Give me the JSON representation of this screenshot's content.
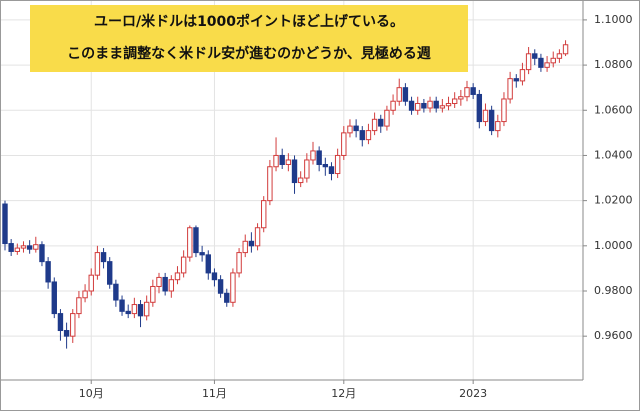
{
  "chart_data": {
    "type": "candlestick",
    "annotation": [
      "ユーロ/米ドルは1000ポイントほど上げている。",
      "このまま調整なく米ドル安が進むのかどうか、見極める週"
    ],
    "categories": [
      null,
      null,
      null,
      null,
      null,
      null,
      null,
      null,
      null,
      null,
      null,
      null,
      null,
      null,
      null,
      null,
      null,
      null,
      null,
      null,
      null,
      null,
      null,
      null,
      null,
      null,
      null,
      null,
      null,
      null,
      null,
      null,
      null,
      null,
      null,
      null,
      null,
      null,
      null,
      null,
      null,
      null,
      null,
      null,
      null,
      null,
      null,
      null,
      null,
      null,
      null,
      null,
      null,
      null,
      null,
      null,
      null,
      null,
      null,
      null,
      null,
      null,
      null,
      null,
      null,
      null,
      null,
      null,
      null,
      null,
      null,
      null,
      null,
      null,
      null,
      null,
      null,
      null,
      null,
      null,
      null,
      null,
      null,
      null,
      null,
      null,
      null,
      null,
      null,
      null,
      null,
      null
    ],
    "open": [
      1.0185,
      1.001,
      0.9975,
      0.999,
      1.0,
      0.9985,
      1.0005,
      0.993,
      0.984,
      0.97,
      0.9625,
      0.96,
      0.97,
      0.977,
      0.98,
      0.987,
      0.997,
      0.993,
      0.983,
      0.976,
      0.971,
      0.97,
      0.974,
      0.969,
      0.975,
      0.982,
      0.986,
      0.98,
      0.985,
      0.988,
      0.995,
      1.008,
      0.997,
      0.996,
      0.988,
      0.985,
      0.979,
      0.975,
      0.988,
      0.997,
      1.002,
      1.0,
      1.008,
      1.02,
      1.035,
      1.04,
      1.036,
      1.038,
      1.028,
      1.03,
      1.038,
      1.042,
      1.036,
      1.035,
      1.032,
      1.04,
      1.05,
      1.053,
      1.051,
      1.047,
      1.051,
      1.056,
      1.053,
      1.06,
      1.064,
      1.07,
      1.064,
      1.06,
      1.063,
      1.061,
      1.064,
      1.061,
      1.062,
      1.063,
      1.065,
      1.066,
      1.07,
      1.067,
      1.055,
      1.06,
      1.051,
      1.055,
      1.065,
      1.074,
      1.073,
      1.078,
      1.085,
      1.083,
      1.079,
      1.081,
      1.083,
      1.085
    ],
    "high": [
      1.02,
      1.003,
      1.001,
      1.002,
      1.0025,
      1.004,
      1.002,
      0.995,
      0.986,
      0.972,
      0.966,
      0.972,
      0.98,
      0.983,
      0.99,
      1.0,
      0.999,
      0.995,
      0.985,
      0.978,
      0.974,
      0.977,
      0.976,
      0.978,
      0.985,
      0.988,
      0.988,
      0.987,
      0.991,
      0.998,
      1.009,
      1.009,
      1.0,
      0.998,
      0.99,
      0.987,
      0.981,
      0.99,
      0.999,
      1.005,
      1.006,
      1.01,
      1.022,
      1.038,
      1.048,
      1.043,
      1.041,
      1.04,
      1.033,
      1.041,
      1.046,
      1.044,
      1.039,
      1.037,
      1.043,
      1.053,
      1.056,
      1.056,
      1.053,
      1.054,
      1.059,
      1.058,
      1.062,
      1.067,
      1.074,
      1.072,
      1.066,
      1.066,
      1.065,
      1.066,
      1.066,
      1.065,
      1.066,
      1.068,
      1.069,
      1.073,
      1.072,
      1.069,
      1.063,
      1.062,
      1.058,
      1.068,
      1.077,
      1.076,
      1.081,
      1.088,
      1.087,
      1.085,
      1.084,
      1.086,
      1.087,
      1.091
    ],
    "low": [
      0.998,
      0.9955,
      0.996,
      0.997,
      0.9965,
      0.997,
      0.991,
      0.981,
      0.968,
      0.958,
      0.9545,
      0.957,
      0.968,
      0.975,
      0.978,
      0.985,
      0.99,
      0.981,
      0.973,
      0.969,
      0.968,
      0.968,
      0.964,
      0.967,
      0.973,
      0.979,
      0.978,
      0.977,
      0.983,
      0.986,
      0.993,
      0.995,
      0.993,
      0.985,
      0.982,
      0.977,
      0.973,
      0.973,
      0.986,
      0.995,
      0.997,
      0.998,
      1.006,
      1.018,
      1.033,
      1.034,
      1.033,
      1.023,
      1.026,
      1.028,
      1.036,
      1.033,
      1.031,
      1.029,
      1.03,
      1.038,
      1.048,
      1.048,
      1.044,
      1.045,
      1.049,
      1.05,
      1.051,
      1.058,
      1.062,
      1.062,
      1.058,
      1.058,
      1.059,
      1.059,
      1.059,
      1.059,
      1.06,
      1.061,
      1.062,
      1.064,
      1.065,
      1.052,
      1.053,
      1.049,
      1.048,
      1.053,
      1.063,
      1.07,
      1.071,
      1.076,
      1.08,
      1.077,
      1.077,
      1.079,
      1.081,
      1.084
    ],
    "close": [
      1.001,
      0.9975,
      0.999,
      1.0,
      0.9985,
      1.0005,
      0.993,
      0.984,
      0.97,
      0.9625,
      0.96,
      0.97,
      0.977,
      0.98,
      0.987,
      0.997,
      0.993,
      0.983,
      0.976,
      0.971,
      0.97,
      0.974,
      0.969,
      0.975,
      0.982,
      0.986,
      0.98,
      0.985,
      0.988,
      0.995,
      1.008,
      0.997,
      0.996,
      0.988,
      0.985,
      0.979,
      0.975,
      0.988,
      0.997,
      1.002,
      1.0,
      1.008,
      1.02,
      1.035,
      1.04,
      1.036,
      1.038,
      1.028,
      1.03,
      1.038,
      1.042,
      1.036,
      1.035,
      1.032,
      1.04,
      1.05,
      1.053,
      1.051,
      1.047,
      1.051,
      1.056,
      1.053,
      1.06,
      1.064,
      1.07,
      1.064,
      1.06,
      1.063,
      1.061,
      1.064,
      1.061,
      1.062,
      1.063,
      1.065,
      1.066,
      1.07,
      1.067,
      1.055,
      1.06,
      1.051,
      1.055,
      1.065,
      1.074,
      1.073,
      1.078,
      1.085,
      1.083,
      1.079,
      1.081,
      1.083,
      1.085,
      1.089
    ],
    "up_color": "#d23c3c",
    "down_color": "#1f3a8a",
    "xticks": [
      {
        "value": 14,
        "label": "10月"
      },
      {
        "value": 34,
        "label": "11月"
      },
      {
        "value": 55,
        "label": "12月"
      },
      {
        "value": 76,
        "label": "2023"
      }
    ],
    "ylim": [
      0.9406,
      1.1066
    ],
    "yticks": [
      {
        "value": 0.96,
        "label": "0.9600"
      },
      {
        "value": 0.98,
        "label": "0.9800"
      },
      {
        "value": 1.0,
        "label": "1.0000"
      },
      {
        "value": 1.02,
        "label": "1.0200"
      },
      {
        "value": 1.04,
        "label": "1.0400"
      },
      {
        "value": 1.06,
        "label": "1.0600"
      },
      {
        "value": 1.08,
        "label": "1.0800"
      },
      {
        "value": 1.1,
        "label": "1.1000"
      }
    ],
    "grid": true
  }
}
